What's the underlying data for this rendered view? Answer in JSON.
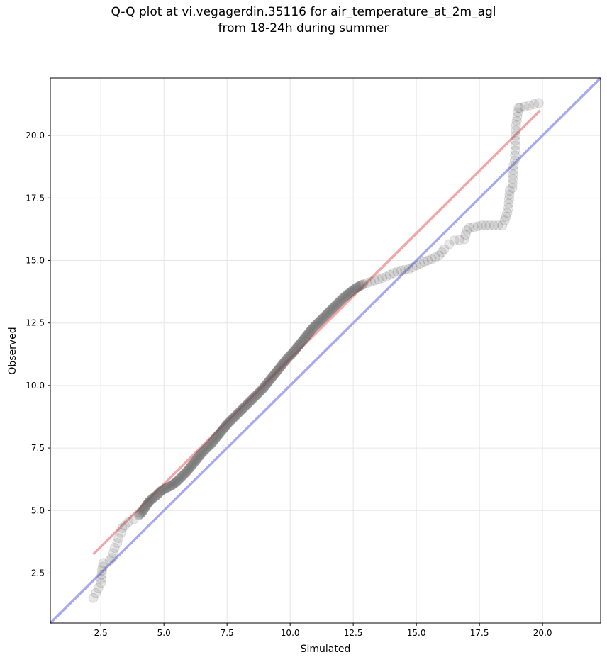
{
  "chart_data": {
    "type": "scatter",
    "title_line1": "Q-Q plot at vi.vegagerdin.35116 for air_temperature_at_2m_agl",
    "title_line2": "from 18-24h during summer",
    "xlabel": "Simulated",
    "ylabel": "Observed",
    "xlim": [
      0.5,
      22.3
    ],
    "ylim": [
      0.5,
      22.3
    ],
    "x_ticks": [
      2.5,
      5.0,
      7.5,
      10.0,
      12.5,
      15.0,
      17.5,
      20.0
    ],
    "y_ticks": [
      2.5,
      5.0,
      7.5,
      10.0,
      12.5,
      15.0,
      17.5,
      20.0
    ],
    "x_tick_labels": [
      "2.5",
      "5.0",
      "7.5",
      "10.0",
      "12.5",
      "15.0",
      "17.5",
      "20.0"
    ],
    "y_tick_labels": [
      "2.5",
      "5.0",
      "7.5",
      "10.0",
      "12.5",
      "15.0",
      "17.5",
      "20.0"
    ],
    "grid": true,
    "point_color": "#555555",
    "fit_line": {
      "color": "#f4a5a5",
      "x": [
        2.2,
        19.9
      ],
      "y": [
        3.25,
        21.0
      ]
    },
    "identity_line": {
      "color": "#a8aaf0",
      "x": [
        0.5,
        22.3
      ],
      "y": [
        0.5,
        22.3
      ]
    },
    "quantiles": [
      [
        2.2,
        1.5
      ],
      [
        2.4,
        1.9
      ],
      [
        2.5,
        2.1
      ],
      [
        2.55,
        2.6
      ],
      [
        2.6,
        2.9
      ],
      [
        2.85,
        3.0
      ],
      [
        2.95,
        3.1
      ],
      [
        3.0,
        3.3
      ],
      [
        3.05,
        3.5
      ],
      [
        3.15,
        3.7
      ],
      [
        3.2,
        3.9
      ],
      [
        3.3,
        4.1
      ],
      [
        3.35,
        4.3
      ],
      [
        3.45,
        4.4
      ],
      [
        3.6,
        4.55
      ],
      [
        3.8,
        4.65
      ],
      [
        4.0,
        4.8
      ],
      [
        4.15,
        4.95
      ],
      [
        4.3,
        5.2
      ],
      [
        4.45,
        5.4
      ],
      [
        4.7,
        5.6
      ],
      [
        4.9,
        5.8
      ],
      [
        5.1,
        5.9
      ],
      [
        5.3,
        6.0
      ],
      [
        5.5,
        6.15
      ],
      [
        5.7,
        6.35
      ],
      [
        5.9,
        6.55
      ],
      [
        6.1,
        6.8
      ],
      [
        6.3,
        7.05
      ],
      [
        6.5,
        7.3
      ],
      [
        6.7,
        7.5
      ],
      [
        6.9,
        7.7
      ],
      [
        7.1,
        7.95
      ],
      [
        7.3,
        8.2
      ],
      [
        7.5,
        8.45
      ],
      [
        7.7,
        8.65
      ],
      [
        7.9,
        8.85
      ],
      [
        8.1,
        9.05
      ],
      [
        8.3,
        9.25
      ],
      [
        8.5,
        9.45
      ],
      [
        8.7,
        9.65
      ],
      [
        8.9,
        9.85
      ],
      [
        9.1,
        10.1
      ],
      [
        9.3,
        10.35
      ],
      [
        9.5,
        10.6
      ],
      [
        9.7,
        10.85
      ],
      [
        9.9,
        11.1
      ],
      [
        10.1,
        11.3
      ],
      [
        10.3,
        11.55
      ],
      [
        10.5,
        11.8
      ],
      [
        10.7,
        12.05
      ],
      [
        10.9,
        12.3
      ],
      [
        11.1,
        12.5
      ],
      [
        11.3,
        12.7
      ],
      [
        11.5,
        12.9
      ],
      [
        11.7,
        13.1
      ],
      [
        11.9,
        13.3
      ],
      [
        12.1,
        13.5
      ],
      [
        12.35,
        13.7
      ],
      [
        12.6,
        13.9
      ],
      [
        12.9,
        14.05
      ],
      [
        13.2,
        14.15
      ],
      [
        13.5,
        14.25
      ],
      [
        13.8,
        14.35
      ],
      [
        14.1,
        14.5
      ],
      [
        14.4,
        14.6
      ],
      [
        14.7,
        14.65
      ],
      [
        15.0,
        14.8
      ],
      [
        15.3,
        14.95
      ],
      [
        15.6,
        15.05
      ],
      [
        15.9,
        15.2
      ],
      [
        16.1,
        15.45
      ],
      [
        16.3,
        15.65
      ],
      [
        16.5,
        15.8
      ],
      [
        16.9,
        15.85
      ],
      [
        17.0,
        16.2
      ],
      [
        17.1,
        16.3
      ],
      [
        17.6,
        16.4
      ],
      [
        17.9,
        16.4
      ],
      [
        18.4,
        16.4
      ],
      [
        18.5,
        16.6
      ],
      [
        18.6,
        16.9
      ],
      [
        18.65,
        17.1
      ],
      [
        18.7,
        17.8
      ],
      [
        18.8,
        17.9
      ],
      [
        18.85,
        18.8
      ],
      [
        18.9,
        19.0
      ],
      [
        18.95,
        20.4
      ],
      [
        19.05,
        21.1
      ],
      [
        19.1,
        21.1
      ],
      [
        19.85,
        21.3
      ]
    ]
  }
}
